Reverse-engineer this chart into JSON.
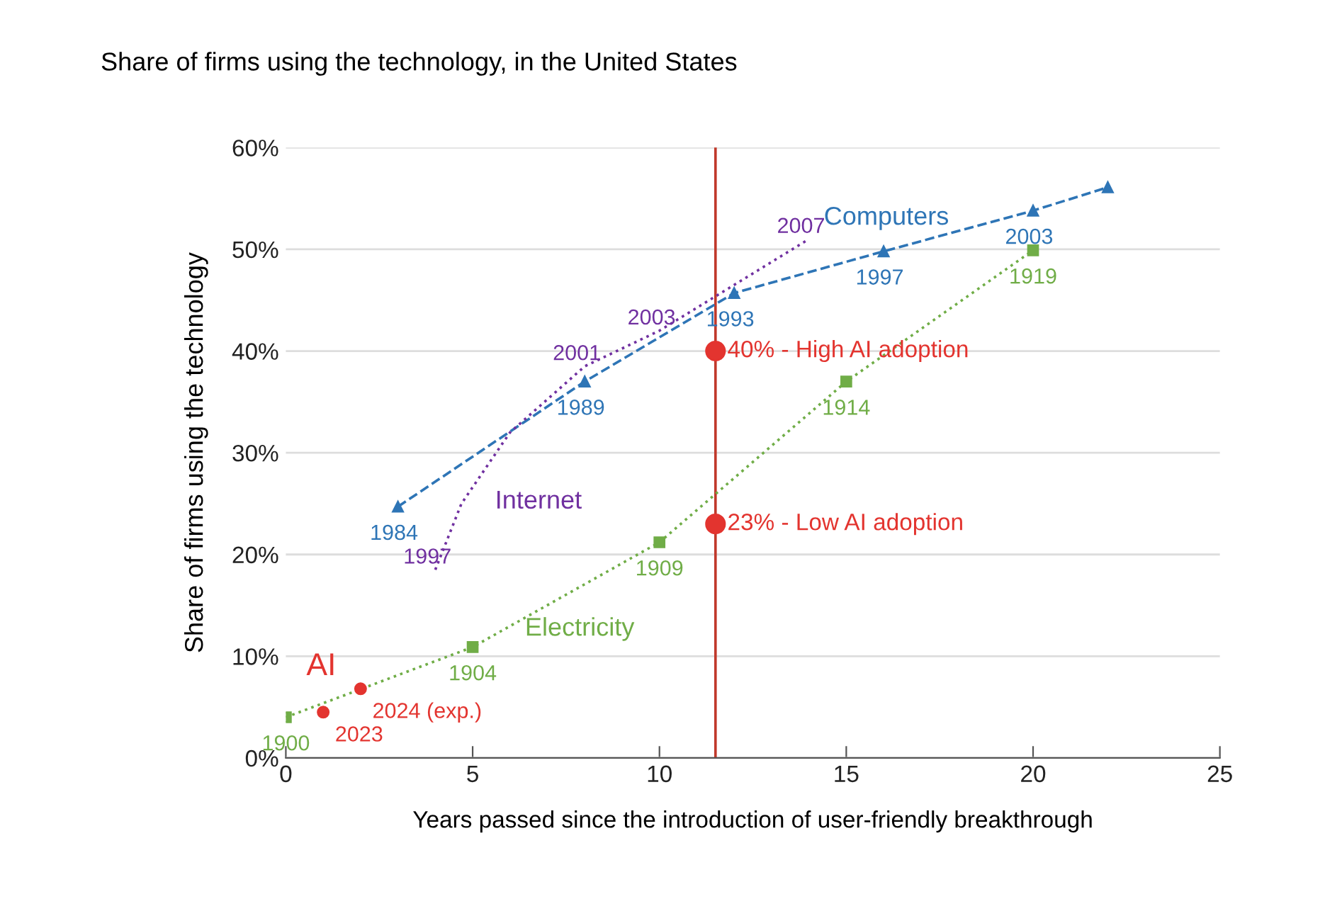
{
  "chart_data": {
    "type": "line",
    "title": "Share of firms using the technology, in the United States",
    "xlabel": "Years passed since the introduction of user-friendly breakthrough",
    "ylabel": "Share of firms using the technology",
    "xlim": [
      0,
      25
    ],
    "xticks": [
      0,
      5,
      10,
      15,
      20,
      25
    ],
    "ylim": [
      0,
      60
    ],
    "yticks": [
      {
        "value": 0,
        "label": "0%"
      },
      {
        "value": 10,
        "label": "10%"
      },
      {
        "value": 20,
        "label": "20%"
      },
      {
        "value": 30,
        "label": "30%"
      },
      {
        "value": 40,
        "label": "40%"
      },
      {
        "value": 50,
        "label": "50%"
      },
      {
        "value": 60,
        "label": "60%"
      }
    ],
    "grid": "y",
    "legend": false,
    "series": [
      {
        "name": "Computers",
        "color": "#2e75b6",
        "marker": "triangle",
        "line_style": "dashed",
        "x": [
          3,
          8,
          12,
          16,
          20,
          22
        ],
        "values": [
          24.7,
          37,
          45.7,
          49.8,
          53.8,
          56.1
        ]
      },
      {
        "name": "Internet",
        "color": "#7030a0",
        "marker": "none",
        "line_style": "dotted",
        "x": [
          4,
          4.7,
          6,
          8,
          10,
          14
        ],
        "values": [
          18.5,
          25,
          32,
          38.5,
          42,
          51
        ]
      },
      {
        "name": "Electricity",
        "color": "#70ad47",
        "marker": "square",
        "line_style": "dotted",
        "x": [
          0,
          5,
          10,
          15,
          20
        ],
        "values": [
          4,
          10.9,
          21.2,
          37,
          49.9
        ]
      },
      {
        "name": "AI",
        "type": "scatter",
        "color": "#e3342f",
        "marker": "circle",
        "x": [
          1,
          2
        ],
        "values": [
          4.5,
          6.8
        ]
      },
      {
        "type": "scatter",
        "color": "#e3342f",
        "marker": "circle",
        "x": [
          11.5,
          11.5
        ],
        "values": [
          40,
          23
        ]
      }
    ],
    "annotations": [
      {
        "text": "1984",
        "x": 3,
        "y": 24.7
      },
      {
        "text": "1989",
        "x": 8,
        "y": 37
      },
      {
        "text": "1993",
        "x": 12,
        "y": 45.7
      },
      {
        "text": "1997",
        "x": 16,
        "y": 49.8
      },
      {
        "text": "2003",
        "x": 20,
        "y": 53.8
      },
      {
        "text": "1997",
        "x": 4,
        "y": 18.5
      },
      {
        "text": "2001",
        "x": 8,
        "y": 38.5
      },
      {
        "text": "2003",
        "x": 10,
        "y": 42
      },
      {
        "text": "2007",
        "x": 14,
        "y": 51
      },
      {
        "text": "1900",
        "x": 0,
        "y": 4
      },
      {
        "text": "1904",
        "x": 5,
        "y": 10.9
      },
      {
        "text": "1909",
        "x": 10,
        "y": 21.2
      },
      {
        "text": "1914",
        "x": 15,
        "y": 37
      },
      {
        "text": "1919",
        "x": 20,
        "y": 49.9
      },
      {
        "text": "2023",
        "x": 1,
        "y": 4.5
      },
      {
        "text": "2024 (exp.)",
        "x": 2,
        "y": 6.8
      },
      {
        "text": "40% - High AI adoption",
        "x": 11.5,
        "y": 40
      },
      {
        "text": "23% - Low AI adoption",
        "x": 11.5,
        "y": 23
      }
    ],
    "ref_lines": [
      {
        "axis": "x",
        "value": 11.5,
        "color": "#c0392b",
        "line_style": "solid"
      }
    ]
  }
}
